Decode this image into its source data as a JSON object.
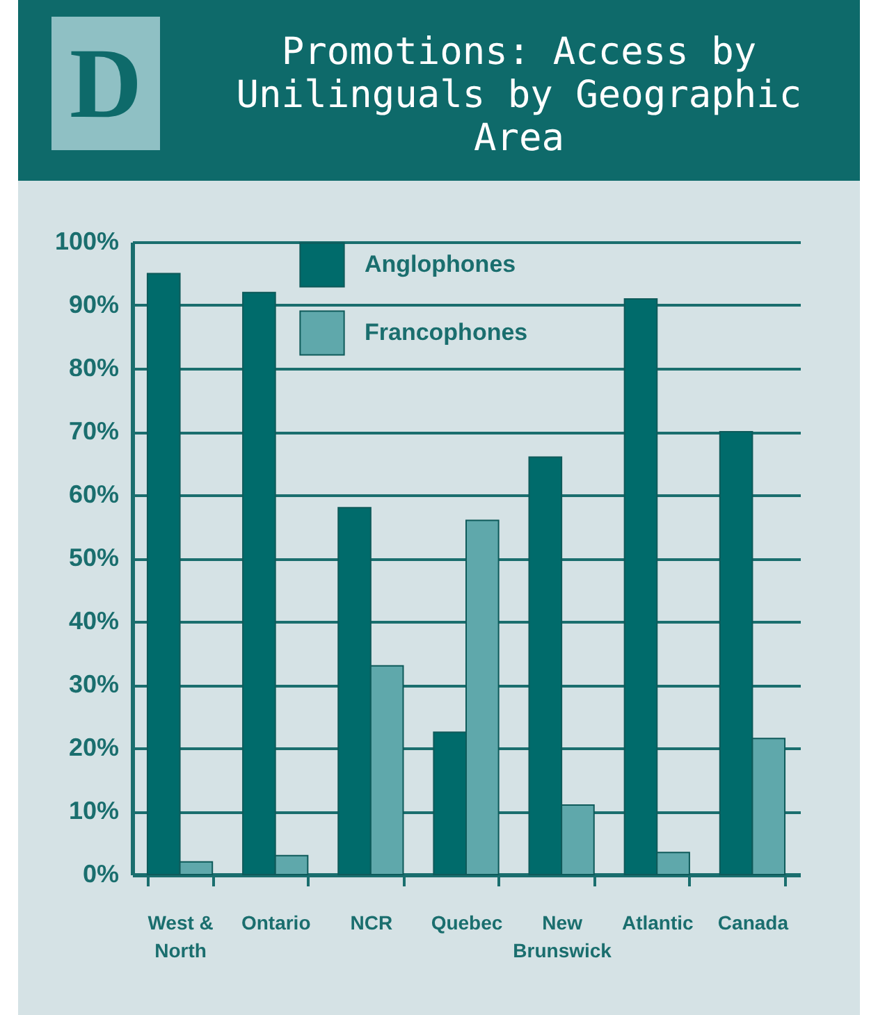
{
  "chart_data": {
    "type": "bar",
    "title": "Promotions: Access by Unilinguals by Geographic Area",
    "annotations": [
      "D"
    ],
    "categories": [
      "West & North",
      "Ontario",
      "NCR",
      "Quebec",
      "New Brunswick",
      "Atlantic",
      "Canada"
    ],
    "series": [
      {
        "name": "Anglophones",
        "color": "#006b6b",
        "values": [
          95,
          92,
          58,
          22.5,
          66,
          91,
          70
        ]
      },
      {
        "name": "Francophones",
        "color": "#5fa8ab",
        "values": [
          2,
          3,
          33,
          56,
          11,
          3.5,
          21.5
        ]
      }
    ],
    "ylim": [
      0,
      100
    ],
    "yticks": [
      {
        "value": 0,
        "label": "0%"
      },
      {
        "value": 10,
        "label": "10%"
      },
      {
        "value": 20,
        "label": "20%"
      },
      {
        "value": 30,
        "label": "30%"
      },
      {
        "value": 40,
        "label": "40%"
      },
      {
        "value": 50,
        "label": "50%"
      },
      {
        "value": 60,
        "label": "60%"
      },
      {
        "value": 70,
        "label": "70%"
      },
      {
        "value": 80,
        "label": "80%"
      },
      {
        "value": 90,
        "label": "90%"
      },
      {
        "value": 100,
        "label": "100%"
      }
    ],
    "grid": "y",
    "legend": "top left"
  }
}
